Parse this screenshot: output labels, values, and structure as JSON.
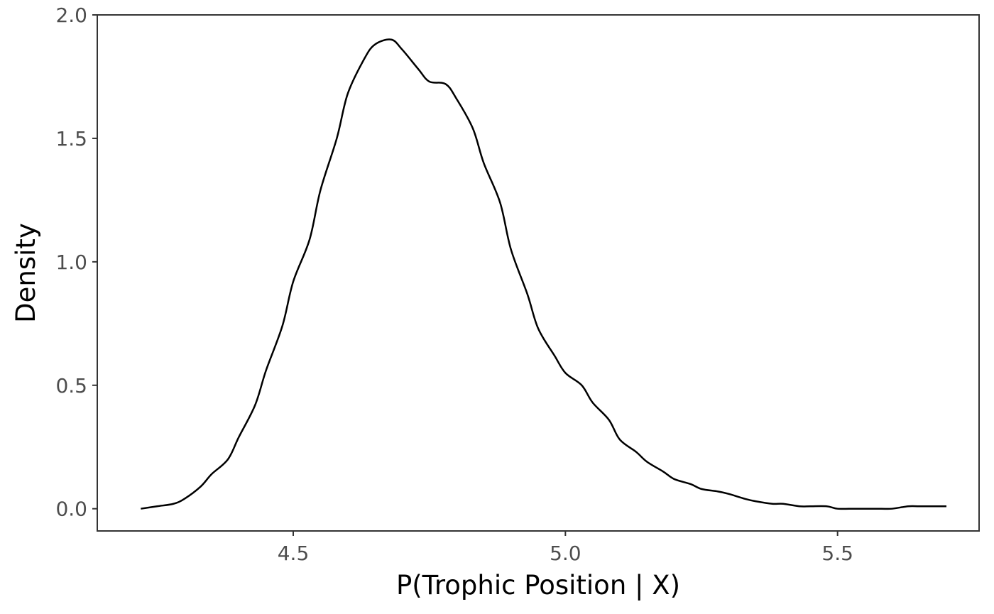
{
  "chart_data": {
    "type": "line",
    "title": "",
    "xlabel": "P(Trophic Position | X)",
    "ylabel": "Density",
    "xlim": [
      4.14,
      5.76
    ],
    "ylim": [
      -0.09,
      2.0
    ],
    "grid": false,
    "x_ticks": [
      {
        "value": 4.5,
        "label": "4.5"
      },
      {
        "value": 5.0,
        "label": "5.0"
      },
      {
        "value": 5.5,
        "label": "5.5"
      }
    ],
    "y_ticks": [
      {
        "value": 0.0,
        "label": "0.0"
      },
      {
        "value": 0.5,
        "label": "0.5"
      },
      {
        "value": 1.0,
        "label": "1.0"
      },
      {
        "value": 1.5,
        "label": "1.5"
      },
      {
        "value": 2.0,
        "label": "2.0"
      }
    ],
    "series": [
      {
        "line_color": "#000000",
        "x": [
          4.22,
          4.25,
          4.28,
          4.3,
          4.33,
          4.35,
          4.38,
          4.4,
          4.43,
          4.45,
          4.48,
          4.5,
          4.53,
          4.55,
          4.58,
          4.6,
          4.63,
          4.65,
          4.68,
          4.7,
          4.73,
          4.75,
          4.78,
          4.8,
          4.83,
          4.85,
          4.88,
          4.9,
          4.93,
          4.95,
          4.98,
          5.0,
          5.03,
          5.05,
          5.08,
          5.1,
          5.13,
          5.15,
          5.18,
          5.2,
          5.23,
          5.25,
          5.28,
          5.3,
          5.33,
          5.35,
          5.38,
          5.4,
          5.43,
          5.45,
          5.48,
          5.5,
          5.53,
          5.55,
          5.58,
          5.6,
          5.63,
          5.65,
          5.68,
          5.7
        ],
        "y": [
          0.0,
          0.01,
          0.02,
          0.04,
          0.09,
          0.14,
          0.2,
          0.29,
          0.42,
          0.56,
          0.74,
          0.92,
          1.09,
          1.29,
          1.5,
          1.68,
          1.82,
          1.88,
          1.9,
          1.86,
          1.78,
          1.73,
          1.72,
          1.66,
          1.54,
          1.4,
          1.24,
          1.05,
          0.87,
          0.73,
          0.62,
          0.55,
          0.5,
          0.43,
          0.36,
          0.28,
          0.23,
          0.19,
          0.15,
          0.12,
          0.1,
          0.08,
          0.07,
          0.06,
          0.04,
          0.03,
          0.02,
          0.02,
          0.01,
          0.01,
          0.01,
          0.0,
          0.0,
          0.0,
          0.0,
          0.0,
          0.01,
          0.01,
          0.01,
          0.01
        ]
      }
    ]
  }
}
